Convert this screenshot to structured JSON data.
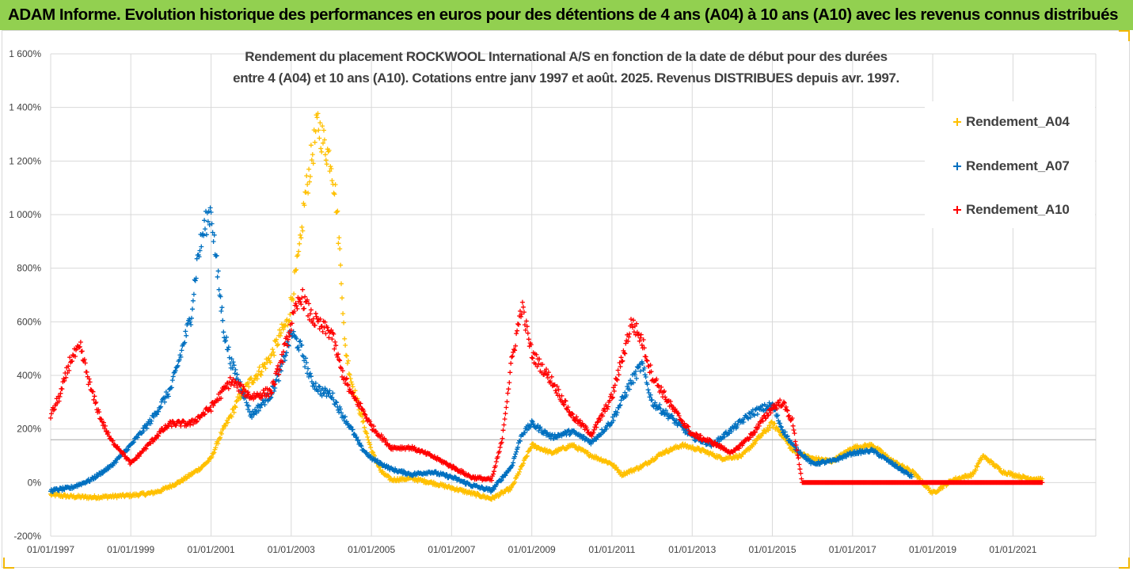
{
  "banner": {
    "text": "ADAM Informe. Evolution historique des performances en euros pour des détentions de 4 ans (A04) à 10 ans (A10) avec les revenus connus distribués",
    "color": "#92d050"
  },
  "chart_data": {
    "type": "scatter",
    "title_line1": "Rendement du placement ROCKWOOL International A/S en fonction de la date de début pour des durées",
    "title_line2": "entre 4 (A04) et 10 ans (A10). Cotations entre janv 1997 et août. 2025. Revenus DISTRIBUES depuis avr. 1997.",
    "xlabel": "",
    "ylabel": "",
    "xlim": [
      "1997-01-01",
      "2022-01-01"
    ],
    "ylim": [
      -200,
      1600
    ],
    "ytick_step": 200,
    "ytick_labels": [
      "-200%",
      "0%",
      "200%",
      "400%",
      "600%",
      "800%",
      "1 000%",
      "1 200%",
      "1 400%",
      "1 600%"
    ],
    "xtick_labels": [
      "01/01/1997",
      "01/01/1999",
      "01/01/2001",
      "01/01/2003",
      "01/01/2005",
      "01/01/2007",
      "01/01/2009",
      "01/01/2011",
      "01/01/2013",
      "01/01/2015",
      "01/01/2017",
      "01/01/2019",
      "01/01/2021"
    ],
    "xticks": [
      "1997-01-01",
      "1999-01-01",
      "2001-01-01",
      "2003-01-01",
      "2005-01-01",
      "2007-01-01",
      "2009-01-01",
      "2011-01-01",
      "2013-01-01",
      "2015-01-01",
      "2017-01-01",
      "2019-01-01",
      "2021-01-01"
    ],
    "marker": "+",
    "grid": true,
    "legend_position": "right",
    "series": [
      {
        "name": "Rendement_A04",
        "color": "#ffc000",
        "points": [
          [
            "1997-01-01",
            -45
          ],
          [
            "1997-07-01",
            -52
          ],
          [
            "1998-01-01",
            -55
          ],
          [
            "1998-07-01",
            -52
          ],
          [
            "1999-01-01",
            -48
          ],
          [
            "1999-07-01",
            -40
          ],
          [
            "1999-10-01",
            -30
          ],
          [
            "2000-04-01",
            5
          ],
          [
            "2000-07-01",
            30
          ],
          [
            "2000-10-01",
            55
          ],
          [
            "2001-01-01",
            90
          ],
          [
            "2001-04-01",
            180
          ],
          [
            "2001-07-01",
            250
          ],
          [
            "2001-10-01",
            330
          ],
          [
            "2002-01-01",
            380
          ],
          [
            "2002-04-01",
            420
          ],
          [
            "2002-07-01",
            470
          ],
          [
            "2002-10-01",
            560
          ],
          [
            "2002-12-01",
            600
          ],
          [
            "2003-02-01",
            750
          ],
          [
            "2003-04-01",
            900
          ],
          [
            "2003-05-01",
            1050
          ],
          [
            "2003-07-01",
            1200
          ],
          [
            "2003-09-01",
            1340
          ],
          [
            "2003-11-01",
            1260
          ],
          [
            "2004-01-01",
            1200
          ],
          [
            "2004-02-15",
            1050
          ],
          [
            "2004-04-01",
            780
          ],
          [
            "2004-05-01",
            520
          ],
          [
            "2004-07-01",
            380
          ],
          [
            "2004-10-01",
            250
          ],
          [
            "2005-01-01",
            120
          ],
          [
            "2005-04-01",
            40
          ],
          [
            "2005-07-01",
            10
          ],
          [
            "2006-01-01",
            15
          ],
          [
            "2006-07-01",
            0
          ],
          [
            "2007-01-01",
            -20
          ],
          [
            "2007-07-01",
            -40
          ],
          [
            "2008-01-01",
            -60
          ],
          [
            "2008-07-01",
            -20
          ],
          [
            "2008-10-01",
            60
          ],
          [
            "2009-01-01",
            140
          ],
          [
            "2009-07-01",
            110
          ],
          [
            "2010-01-01",
            140
          ],
          [
            "2010-07-01",
            100
          ],
          [
            "2011-01-01",
            70
          ],
          [
            "2011-04-01",
            30
          ],
          [
            "2011-10-01",
            60
          ],
          [
            "2012-04-01",
            110
          ],
          [
            "2012-10-01",
            140
          ],
          [
            "2013-04-01",
            120
          ],
          [
            "2013-10-01",
            90
          ],
          [
            "2014-04-01",
            100
          ],
          [
            "2014-10-01",
            180
          ],
          [
            "2015-01-01",
            220
          ],
          [
            "2015-04-01",
            180
          ],
          [
            "2015-07-01",
            120
          ],
          [
            "2016-01-01",
            90
          ],
          [
            "2016-07-01",
            80
          ],
          [
            "2017-01-01",
            130
          ],
          [
            "2017-07-01",
            140
          ],
          [
            "2018-01-01",
            80
          ],
          [
            "2018-07-01",
            40
          ],
          [
            "2019-01-01",
            -40
          ],
          [
            "2019-07-01",
            10
          ],
          [
            "2020-01-01",
            30
          ],
          [
            "2020-04-01",
            100
          ],
          [
            "2020-10-01",
            40
          ],
          [
            "2021-04-01",
            20
          ],
          [
            "2021-10-01",
            10
          ]
        ]
      },
      {
        "name": "Rendement_A07",
        "color": "#0070c0",
        "points": [
          [
            "1997-01-01",
            -30
          ],
          [
            "1997-07-01",
            -20
          ],
          [
            "1998-01-01",
            10
          ],
          [
            "1998-07-01",
            60
          ],
          [
            "1999-01-01",
            140
          ],
          [
            "1999-07-01",
            230
          ],
          [
            "1999-10-01",
            290
          ],
          [
            "2000-01-01",
            350
          ],
          [
            "2000-04-01",
            480
          ],
          [
            "2000-07-01",
            620
          ],
          [
            "2000-09-01",
            840
          ],
          [
            "2000-11-01",
            950
          ],
          [
            "2001-01-01",
            1020
          ],
          [
            "2001-03-01",
            780
          ],
          [
            "2001-05-01",
            560
          ],
          [
            "2001-07-01",
            450
          ],
          [
            "2001-10-01",
            360
          ],
          [
            "2002-01-01",
            250
          ],
          [
            "2002-07-01",
            330
          ],
          [
            "2002-10-01",
            420
          ],
          [
            "2003-01-01",
            560
          ],
          [
            "2003-04-01",
            500
          ],
          [
            "2003-07-01",
            380
          ],
          [
            "2003-10-01",
            340
          ],
          [
            "2004-01-01",
            330
          ],
          [
            "2004-04-01",
            260
          ],
          [
            "2004-07-01",
            200
          ],
          [
            "2004-10-01",
            130
          ],
          [
            "2005-01-01",
            90
          ],
          [
            "2005-07-01",
            50
          ],
          [
            "2006-01-01",
            30
          ],
          [
            "2006-07-01",
            40
          ],
          [
            "2007-01-01",
            20
          ],
          [
            "2007-07-01",
            -10
          ],
          [
            "2008-01-01",
            -30
          ],
          [
            "2008-07-01",
            60
          ],
          [
            "2008-10-01",
            180
          ],
          [
            "2009-01-01",
            220
          ],
          [
            "2009-07-01",
            170
          ],
          [
            "2010-01-01",
            190
          ],
          [
            "2010-07-01",
            150
          ],
          [
            "2011-01-01",
            230
          ],
          [
            "2011-07-01",
            380
          ],
          [
            "2011-10-01",
            440
          ],
          [
            "2012-01-01",
            300
          ],
          [
            "2012-07-01",
            240
          ],
          [
            "2013-01-01",
            170
          ],
          [
            "2013-07-01",
            140
          ],
          [
            "2014-01-01",
            200
          ],
          [
            "2014-07-01",
            260
          ],
          [
            "2015-01-01",
            290
          ],
          [
            "2015-04-01",
            200
          ],
          [
            "2015-07-01",
            140
          ],
          [
            "2016-01-01",
            70
          ],
          [
            "2016-07-01",
            80
          ],
          [
            "2017-01-01",
            110
          ],
          [
            "2017-07-01",
            120
          ],
          [
            "2018-01-01",
            70
          ],
          [
            "2018-07-01",
            20
          ]
        ]
      },
      {
        "name": "Rendement_A10",
        "color": "#ff0000",
        "points": [
          [
            "1997-01-01",
            250
          ],
          [
            "1997-04-01",
            330
          ],
          [
            "1997-07-01",
            460
          ],
          [
            "1997-10-01",
            500
          ],
          [
            "1998-01-01",
            350
          ],
          [
            "1998-04-01",
            240
          ],
          [
            "1998-07-01",
            160
          ],
          [
            "1998-10-01",
            120
          ],
          [
            "1999-01-01",
            70
          ],
          [
            "1999-04-01",
            110
          ],
          [
            "1999-07-01",
            150
          ],
          [
            "1999-10-01",
            190
          ],
          [
            "2000-01-01",
            220
          ],
          [
            "2000-07-01",
            220
          ],
          [
            "2001-01-01",
            280
          ],
          [
            "2001-07-01",
            380
          ],
          [
            "2002-01-01",
            320
          ],
          [
            "2002-07-01",
            340
          ],
          [
            "2002-10-01",
            450
          ],
          [
            "2003-01-01",
            590
          ],
          [
            "2003-04-01",
            700
          ],
          [
            "2003-07-01",
            620
          ],
          [
            "2003-10-01",
            580
          ],
          [
            "2004-01-01",
            560
          ],
          [
            "2004-04-01",
            420
          ],
          [
            "2004-07-01",
            330
          ],
          [
            "2004-10-01",
            280
          ],
          [
            "2005-01-01",
            210
          ],
          [
            "2005-07-01",
            130
          ],
          [
            "2006-01-01",
            130
          ],
          [
            "2006-07-01",
            100
          ],
          [
            "2007-01-01",
            60
          ],
          [
            "2007-07-01",
            20
          ],
          [
            "2008-01-01",
            10
          ],
          [
            "2008-04-01",
            150
          ],
          [
            "2008-07-01",
            450
          ],
          [
            "2008-10-01",
            660
          ],
          [
            "2009-01-01",
            480
          ],
          [
            "2009-07-01",
            380
          ],
          [
            "2010-01-01",
            250
          ],
          [
            "2010-07-01",
            180
          ],
          [
            "2011-01-01",
            320
          ],
          [
            "2011-07-01",
            600
          ],
          [
            "2011-10-01",
            530
          ],
          [
            "2012-01-01",
            400
          ],
          [
            "2012-07-01",
            280
          ],
          [
            "2013-01-01",
            180
          ],
          [
            "2013-07-01",
            150
          ],
          [
            "2014-01-01",
            110
          ],
          [
            "2014-07-01",
            180
          ],
          [
            "2015-01-01",
            280
          ],
          [
            "2015-04-01",
            300
          ],
          [
            "2015-07-01",
            230
          ],
          [
            "2015-10-01",
            0
          ],
          [
            "2017-01-01",
            0
          ],
          [
            "2019-01-01",
            0
          ],
          [
            "2021-01-01",
            0
          ],
          [
            "2021-10-01",
            0
          ]
        ]
      }
    ]
  }
}
